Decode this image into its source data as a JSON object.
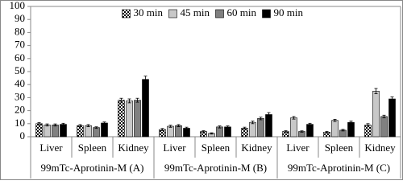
{
  "chart_data": {
    "type": "bar",
    "categories": [
      "Liver",
      "Spleen",
      "Kidney",
      "Liver",
      "Spleen",
      "Kidney",
      "Liver",
      "Spleen",
      "Kidney"
    ],
    "groups": [
      "99mTc-Aprotinin-M (A)",
      "99mTc-Aprotinin-M (B)",
      "99mTc-Aprotinin-M (C)"
    ],
    "series": [
      {
        "name": "30 min",
        "color": "#ffffff",
        "pattern": "checkered",
        "values": [
          10,
          8.5,
          28,
          5.5,
          4,
          6.5,
          4,
          3.5,
          9
        ],
        "errors": [
          0.8,
          0.8,
          1.5,
          0.8,
          0.6,
          0.8,
          0.6,
          0.5,
          1
        ]
      },
      {
        "name": "45 min",
        "color": "#c8c8c8",
        "values": [
          9,
          8.5,
          27.5,
          8,
          2.5,
          11,
          14.5,
          12.5,
          35
        ],
        "errors": [
          0.8,
          0.8,
          1.5,
          0.8,
          0.5,
          1,
          1,
          0.8,
          2
        ]
      },
      {
        "name": "60 min",
        "color": "#808080",
        "values": [
          9,
          7,
          28,
          8.5,
          7.5,
          14,
          4,
          5,
          15.5
        ],
        "errors": [
          0.8,
          0.6,
          1.5,
          0.8,
          0.8,
          1,
          0.5,
          0.6,
          1
        ]
      },
      {
        "name": "90 min",
        "color": "#000000",
        "values": [
          9.5,
          10.5,
          44,
          6.5,
          7.5,
          17,
          9.5,
          11,
          29
        ],
        "errors": [
          0.8,
          0.8,
          2.5,
          0.8,
          0.8,
          1.5,
          0.8,
          1,
          1.5
        ]
      }
    ],
    "ylim": [
      0,
      100
    ],
    "yticks": [
      0,
      10,
      20,
      30,
      40,
      50,
      60,
      70,
      80,
      90,
      100
    ],
    "legend": "top"
  }
}
